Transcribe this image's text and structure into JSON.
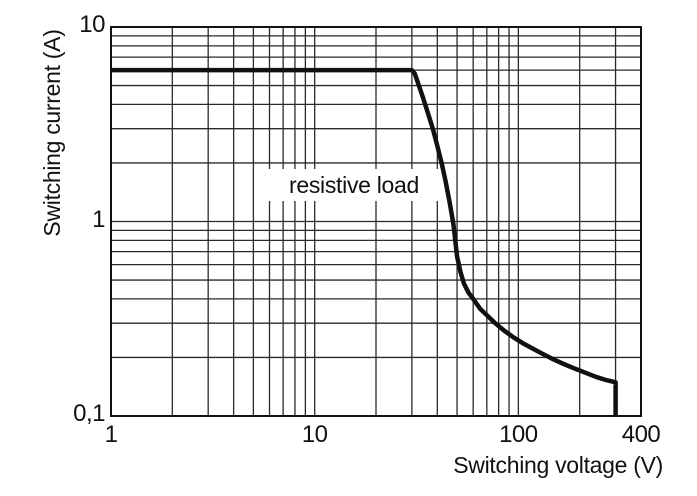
{
  "chart_data": {
    "type": "line",
    "title": "",
    "xlabel": "Switching voltage (V)",
    "ylabel": "Switching current (A)",
    "annotation": "resistive load",
    "x_scale": "log",
    "y_scale": "log",
    "xlim": [
      1,
      400
    ],
    "ylim": [
      0.1,
      10
    ],
    "grid": "full log minor grid, on",
    "legend": "none",
    "x_ticks": [
      {
        "value": 1,
        "label": "1"
      },
      {
        "value": 10,
        "label": "10"
      },
      {
        "value": 100,
        "label": "100"
      },
      {
        "value": 400,
        "label": "400"
      }
    ],
    "y_ticks": [
      {
        "value": 0.1,
        "label": "0,1"
      },
      {
        "value": 1,
        "label": "1"
      },
      {
        "value": 10,
        "label": "10"
      }
    ],
    "series": [
      {
        "name": "resistive load",
        "color": "#111111",
        "points": [
          [
            1,
            6
          ],
          [
            30,
            6
          ],
          [
            31,
            5.75
          ],
          [
            32.5,
            5.0
          ],
          [
            34,
            4.35
          ],
          [
            36,
            3.6
          ],
          [
            38,
            3.0
          ],
          [
            40,
            2.45
          ],
          [
            42,
            2.0
          ],
          [
            44,
            1.6
          ],
          [
            46,
            1.25
          ],
          [
            48,
            0.97
          ],
          [
            50,
            0.66
          ],
          [
            52,
            0.55
          ],
          [
            54,
            0.48
          ],
          [
            57,
            0.43
          ],
          [
            60,
            0.4
          ],
          [
            65,
            0.355
          ],
          [
            70,
            0.33
          ],
          [
            77,
            0.3
          ],
          [
            85,
            0.275
          ],
          [
            95,
            0.253
          ],
          [
            105,
            0.237
          ],
          [
            115,
            0.225
          ],
          [
            130,
            0.21
          ],
          [
            145,
            0.198
          ],
          [
            165,
            0.186
          ],
          [
            185,
            0.177
          ],
          [
            210,
            0.168
          ],
          [
            240,
            0.159
          ],
          [
            270,
            0.153
          ],
          [
            300,
            0.149
          ],
          [
            300,
            0.1
          ]
        ]
      }
    ]
  },
  "colors": {
    "background": "#ffffff",
    "grid": "#2a2a2a",
    "frame": "#111111",
    "curve": "#111111",
    "text": "#111111"
  }
}
